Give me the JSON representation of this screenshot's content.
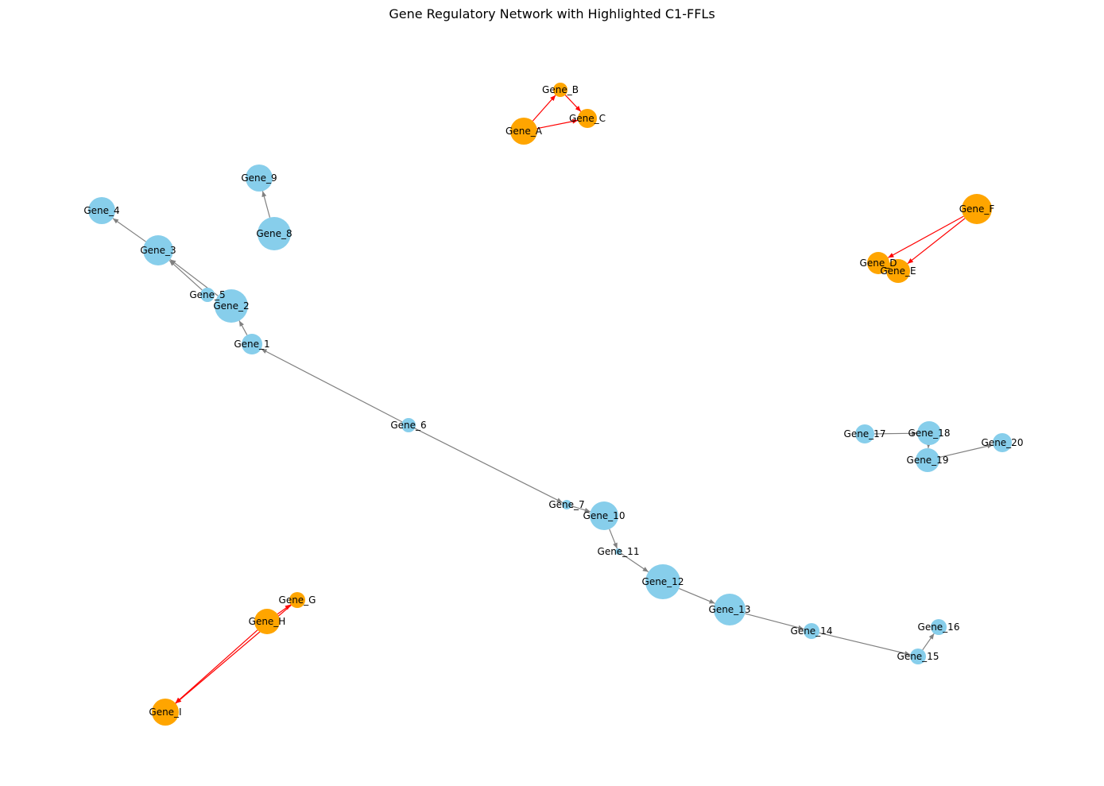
{
  "title": "Gene Regulatory Network with Highlighted C1-FFLs",
  "colors": {
    "node_default": "#87ceeb",
    "node_ffl": "#ffa500",
    "edge_default": "#808080",
    "edge_ffl": "#ff0000"
  },
  "nodes": [
    {
      "id": "Gene_A",
      "label": "Gene_A",
      "ffl": true
    },
    {
      "id": "Gene_B",
      "label": "Gene_B",
      "ffl": true
    },
    {
      "id": "Gene_C",
      "label": "Gene_C",
      "ffl": true
    },
    {
      "id": "Gene_D",
      "label": "Gene_D",
      "ffl": true
    },
    {
      "id": "Gene_E",
      "label": "Gene_E",
      "ffl": true
    },
    {
      "id": "Gene_F",
      "label": "Gene_F",
      "ffl": true
    },
    {
      "id": "Gene_G",
      "label": "Gene_G",
      "ffl": true
    },
    {
      "id": "Gene_H",
      "label": "Gene_H",
      "ffl": true
    },
    {
      "id": "Gene_I",
      "label": "Gene_I",
      "ffl": true
    },
    {
      "id": "Gene_1",
      "label": "Gene_1",
      "ffl": false
    },
    {
      "id": "Gene_2",
      "label": "Gene_2",
      "ffl": false
    },
    {
      "id": "Gene_3",
      "label": "Gene_3",
      "ffl": false
    },
    {
      "id": "Gene_4",
      "label": "Gene_4",
      "ffl": false
    },
    {
      "id": "Gene_5",
      "label": "Gene_5",
      "ffl": false
    },
    {
      "id": "Gene_6",
      "label": "Gene_6",
      "ffl": false
    },
    {
      "id": "Gene_7",
      "label": "Gene_7",
      "ffl": false
    },
    {
      "id": "Gene_8",
      "label": "Gene_8",
      "ffl": false
    },
    {
      "id": "Gene_9",
      "label": "Gene_9",
      "ffl": false
    },
    {
      "id": "Gene_10",
      "label": "Gene_10",
      "ffl": false
    },
    {
      "id": "Gene_11",
      "label": "Gene_11",
      "ffl": false
    },
    {
      "id": "Gene_12",
      "label": "Gene_12",
      "ffl": false
    },
    {
      "id": "Gene_13",
      "label": "Gene_13",
      "ffl": false
    },
    {
      "id": "Gene_14",
      "label": "Gene_14",
      "ffl": false
    },
    {
      "id": "Gene_15",
      "label": "Gene_15",
      "ffl": false
    },
    {
      "id": "Gene_16",
      "label": "Gene_16",
      "ffl": false
    },
    {
      "id": "Gene_17",
      "label": "Gene_17",
      "ffl": false
    },
    {
      "id": "Gene_18",
      "label": "Gene_18",
      "ffl": false
    },
    {
      "id": "Gene_19",
      "label": "Gene_19",
      "ffl": false
    },
    {
      "id": "Gene_20",
      "label": "Gene_20",
      "ffl": false
    }
  ],
  "edges": [
    {
      "source": "Gene_A",
      "target": "Gene_B",
      "ffl": true
    },
    {
      "source": "Gene_B",
      "target": "Gene_C",
      "ffl": true
    },
    {
      "source": "Gene_A",
      "target": "Gene_C",
      "ffl": true
    },
    {
      "source": "Gene_F",
      "target": "Gene_D",
      "ffl": true
    },
    {
      "source": "Gene_F",
      "target": "Gene_E",
      "ffl": true
    },
    {
      "source": "Gene_D",
      "target": "Gene_E",
      "ffl": true
    },
    {
      "source": "Gene_H",
      "target": "Gene_G",
      "ffl": true
    },
    {
      "source": "Gene_G",
      "target": "Gene_I",
      "ffl": true
    },
    {
      "source": "Gene_H",
      "target": "Gene_I",
      "ffl": true
    },
    {
      "source": "Gene_3",
      "target": "Gene_4",
      "ffl": false
    },
    {
      "source": "Gene_5",
      "target": "Gene_3",
      "ffl": false
    },
    {
      "source": "Gene_2",
      "target": "Gene_3",
      "ffl": false
    },
    {
      "source": "Gene_1",
      "target": "Gene_2",
      "ffl": false
    },
    {
      "source": "Gene_6",
      "target": "Gene_1",
      "ffl": false
    },
    {
      "source": "Gene_6",
      "target": "Gene_7",
      "ffl": false
    },
    {
      "source": "Gene_7",
      "target": "Gene_10",
      "ffl": false
    },
    {
      "source": "Gene_10",
      "target": "Gene_11",
      "ffl": false
    },
    {
      "source": "Gene_11",
      "target": "Gene_12",
      "ffl": false
    },
    {
      "source": "Gene_12",
      "target": "Gene_13",
      "ffl": false
    },
    {
      "source": "Gene_13",
      "target": "Gene_14",
      "ffl": false
    },
    {
      "source": "Gene_14",
      "target": "Gene_15",
      "ffl": false
    },
    {
      "source": "Gene_15",
      "target": "Gene_16",
      "ffl": false
    },
    {
      "source": "Gene_8",
      "target": "Gene_9",
      "ffl": false
    },
    {
      "source": "Gene_17",
      "target": "Gene_18",
      "ffl": false
    },
    {
      "source": "Gene_18",
      "target": "Gene_19",
      "ffl": false
    },
    {
      "source": "Gene_19",
      "target": "Gene_20",
      "ffl": false
    }
  ]
}
